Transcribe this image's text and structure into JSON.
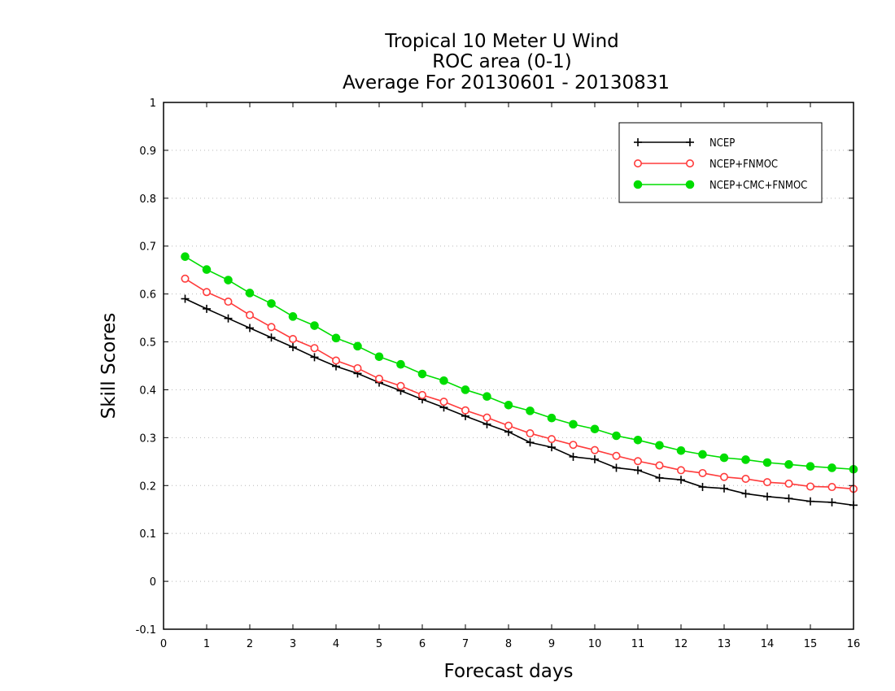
{
  "chart_data": {
    "type": "line",
    "title_lines": [
      "Tropical 10 Meter U Wind",
      "ROC area (0-1)",
      "Average For 20130601 - 20130831"
    ],
    "xlabel": "Forecast days",
    "ylabel": "Skill Scores",
    "xlim": [
      0,
      16
    ],
    "ylim": [
      -0.1,
      1
    ],
    "x_ticks": [
      "0",
      "1",
      "2",
      "3",
      "4",
      "5",
      "6",
      "7",
      "8",
      "9",
      "10",
      "11",
      "12",
      "13",
      "14",
      "15",
      "16"
    ],
    "y_ticks": [
      "-0.1",
      "0",
      "0.1",
      "0.2",
      "0.3",
      "0.4",
      "0.5",
      "0.6",
      "0.7",
      "0.8",
      "0.9",
      "1"
    ],
    "grid": "horizontal-dotted",
    "legend_position": "top-right",
    "x": [
      0.5,
      1,
      1.5,
      2,
      2.5,
      3,
      3.5,
      4,
      4.5,
      5,
      5.5,
      6,
      6.5,
      7,
      7.5,
      8,
      8.5,
      9,
      9.5,
      10,
      10.5,
      11,
      11.5,
      12,
      12.5,
      13,
      13.5,
      14,
      14.5,
      15,
      15.5,
      16
    ],
    "series": [
      {
        "name": "NCEP",
        "color": "#000000",
        "marker": "plus",
        "values": [
          0.59,
          0.569,
          0.549,
          0.529,
          0.509,
          0.489,
          0.468,
          0.449,
          0.434,
          0.415,
          0.398,
          0.38,
          0.363,
          0.345,
          0.328,
          0.312,
          0.29,
          0.28,
          0.26,
          0.255,
          0.237,
          0.232,
          0.216,
          0.212,
          0.197,
          0.194,
          0.183,
          0.177,
          0.173,
          0.167,
          0.165,
          0.159
        ]
      },
      {
        "name": "NCEP+FNMOC",
        "color": "#ff3b3b",
        "marker": "open-circle",
        "values": [
          0.632,
          0.604,
          0.584,
          0.556,
          0.531,
          0.506,
          0.487,
          0.461,
          0.445,
          0.423,
          0.408,
          0.389,
          0.375,
          0.357,
          0.342,
          0.325,
          0.309,
          0.297,
          0.285,
          0.274,
          0.262,
          0.251,
          0.242,
          0.232,
          0.226,
          0.218,
          0.214,
          0.207,
          0.204,
          0.198,
          0.197,
          0.193
        ]
      },
      {
        "name": "NCEP+CMC+FNMOC",
        "color": "#00dd00",
        "marker": "filled-circle",
        "values": [
          0.678,
          0.651,
          0.629,
          0.602,
          0.58,
          0.553,
          0.534,
          0.508,
          0.491,
          0.469,
          0.453,
          0.433,
          0.419,
          0.4,
          0.386,
          0.368,
          0.356,
          0.341,
          0.328,
          0.318,
          0.304,
          0.295,
          0.284,
          0.273,
          0.265,
          0.258,
          0.254,
          0.248,
          0.244,
          0.24,
          0.237,
          0.234
        ]
      }
    ]
  }
}
